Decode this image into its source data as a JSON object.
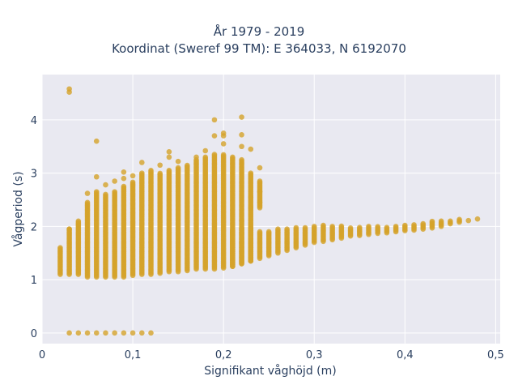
{
  "chart_data": {
    "type": "scatter",
    "title_lines": [
      "År 1979 - 2019",
      "Koordinat (Sweref 99 TM): E 364033, N 6192070"
    ],
    "xlabel": "Signifikant våghöjd (m)",
    "ylabel": "Vågperiod (s)",
    "xlim": [
      0,
      0.505
    ],
    "ylim": [
      -0.2,
      4.85
    ],
    "x_ticks": [
      0,
      0.1,
      0.2,
      0.3,
      0.4,
      0.5
    ],
    "x_tick_labels": [
      "0",
      "0,1",
      "0,2",
      "0,3",
      "0,4",
      "0,5"
    ],
    "y_ticks": [
      0,
      1,
      2,
      3,
      4
    ],
    "y_tick_labels": [
      "0",
      "1",
      "2",
      "3",
      "4"
    ],
    "grid": true,
    "marker_color": "#d4a22b",
    "plot_bg": "#e9e9f1",
    "bands": [
      {
        "x": 0.02,
        "ymin": 1.1,
        "ymax": 1.6
      },
      {
        "x": 0.03,
        "ymin": 1.1,
        "ymax": 1.95
      },
      {
        "x": 0.04,
        "ymin": 1.1,
        "ymax": 2.08
      },
      {
        "x": 0.05,
        "ymin": 1.05,
        "ymax": 2.45
      },
      {
        "x": 0.06,
        "ymin": 1.05,
        "ymax": 2.65
      },
      {
        "x": 0.07,
        "ymin": 1.05,
        "ymax": 2.6
      },
      {
        "x": 0.08,
        "ymin": 1.05,
        "ymax": 2.65
      },
      {
        "x": 0.09,
        "ymin": 1.05,
        "ymax": 2.75
      },
      {
        "x": 0.1,
        "ymin": 1.08,
        "ymax": 2.85
      },
      {
        "x": 0.11,
        "ymin": 1.1,
        "ymax": 3.0
      },
      {
        "x": 0.12,
        "ymin": 1.1,
        "ymax": 3.05
      },
      {
        "x": 0.13,
        "ymin": 1.12,
        "ymax": 3.0
      },
      {
        "x": 0.14,
        "ymin": 1.15,
        "ymax": 3.05
      },
      {
        "x": 0.15,
        "ymin": 1.15,
        "ymax": 3.1
      },
      {
        "x": 0.16,
        "ymin": 1.17,
        "ymax": 3.15
      },
      {
        "x": 0.17,
        "ymin": 1.2,
        "ymax": 3.25
      },
      {
        "x": 0.18,
        "ymin": 1.2,
        "ymax": 3.3
      },
      {
        "x": 0.19,
        "ymin": 1.2,
        "ymax": 3.35
      },
      {
        "x": 0.2,
        "ymin": 1.22,
        "ymax": 3.35
      },
      {
        "x": 0.21,
        "ymin": 1.25,
        "ymax": 3.3
      },
      {
        "x": 0.22,
        "ymin": 1.3,
        "ymax": 3.25
      },
      {
        "x": 0.23,
        "ymin": 1.35,
        "ymax": 3.0
      },
      {
        "x": 0.24,
        "ymin": 2.35,
        "ymax": 2.85
      }
    ],
    "lower_bands": [
      {
        "x": 0.21,
        "ymin": 1.28,
        "ymax": 1.95
      },
      {
        "x": 0.22,
        "ymin": 1.3,
        "ymax": 1.98
      },
      {
        "x": 0.23,
        "ymin": 1.35,
        "ymax": 1.98
      },
      {
        "x": 0.24,
        "ymin": 1.4,
        "ymax": 1.9
      },
      {
        "x": 0.25,
        "ymin": 1.45,
        "ymax": 1.92
      },
      {
        "x": 0.26,
        "ymin": 1.5,
        "ymax": 1.95
      },
      {
        "x": 0.27,
        "ymin": 1.55,
        "ymax": 1.97
      },
      {
        "x": 0.28,
        "ymin": 1.6,
        "ymax": 1.98
      },
      {
        "x": 0.29,
        "ymin": 1.65,
        "ymax": 1.98
      },
      {
        "x": 0.3,
        "ymin": 1.7,
        "ymax": 2.02
      },
      {
        "x": 0.31,
        "ymin": 1.72,
        "ymax": 2.02
      },
      {
        "x": 0.32,
        "ymin": 1.75,
        "ymax": 2.02
      },
      {
        "x": 0.33,
        "ymin": 1.78,
        "ymax": 2.02
      },
      {
        "x": 0.34,
        "ymin": 1.82,
        "ymax": 1.98
      },
      {
        "x": 0.35,
        "ymin": 1.83,
        "ymax": 1.98
      },
      {
        "x": 0.36,
        "ymin": 1.85,
        "ymax": 2.0
      },
      {
        "x": 0.37,
        "ymin": 1.87,
        "ymax": 2.0
      },
      {
        "x": 0.38,
        "ymin": 1.88,
        "ymax": 2.0
      },
      {
        "x": 0.39,
        "ymin": 1.9,
        "ymax": 2.02
      },
      {
        "x": 0.4,
        "ymin": 1.92,
        "ymax": 2.02
      },
      {
        "x": 0.41,
        "ymin": 1.93,
        "ymax": 2.05
      },
      {
        "x": 0.42,
        "ymin": 1.95,
        "ymax": 2.07
      },
      {
        "x": 0.43,
        "ymin": 1.97,
        "ymax": 2.1
      },
      {
        "x": 0.44,
        "ymin": 2.0,
        "ymax": 2.1
      },
      {
        "x": 0.45,
        "ymin": 2.05,
        "ymax": 2.12
      },
      {
        "x": 0.46,
        "ymin": 2.08,
        "ymax": 2.13
      }
    ],
    "points": [
      {
        "x": 0.03,
        "y": 4.58
      },
      {
        "x": 0.03,
        "y": 4.52
      },
      {
        "x": 0.06,
        "y": 3.6
      },
      {
        "x": 0.06,
        "y": 2.93
      },
      {
        "x": 0.11,
        "y": 3.2
      },
      {
        "x": 0.14,
        "y": 3.4
      },
      {
        "x": 0.14,
        "y": 3.3
      },
      {
        "x": 0.19,
        "y": 4.0
      },
      {
        "x": 0.19,
        "y": 3.7
      },
      {
        "x": 0.2,
        "y": 3.75
      },
      {
        "x": 0.2,
        "y": 3.7
      },
      {
        "x": 0.2,
        "y": 3.55
      },
      {
        "x": 0.22,
        "y": 4.05
      },
      {
        "x": 0.22,
        "y": 3.72
      },
      {
        "x": 0.22,
        "y": 3.5
      },
      {
        "x": 0.23,
        "y": 3.45
      },
      {
        "x": 0.24,
        "y": 3.1
      },
      {
        "x": 0.22,
        "y": 2.1
      },
      {
        "x": 0.23,
        "y": 2.35
      },
      {
        "x": 0.24,
        "y": 2.65
      },
      {
        "x": 0.21,
        "y": 1.25
      },
      {
        "x": 0.03,
        "y": 1.95
      },
      {
        "x": 0.07,
        "y": 2.78
      },
      {
        "x": 0.09,
        "y": 3.02
      },
      {
        "x": 0.09,
        "y": 2.9
      },
      {
        "x": 0.04,
        "y": 2.1
      },
      {
        "x": 0.05,
        "y": 2.62
      },
      {
        "x": 0.08,
        "y": 2.85
      },
      {
        "x": 0.1,
        "y": 2.95
      },
      {
        "x": 0.13,
        "y": 3.15
      },
      {
        "x": 0.15,
        "y": 3.22
      },
      {
        "x": 0.17,
        "y": 3.3
      },
      {
        "x": 0.18,
        "y": 3.42
      },
      {
        "x": 0.47,
        "y": 2.11
      },
      {
        "x": 0.48,
        "y": 2.14
      },
      {
        "x": 0.23,
        "y": 2.55
      },
      {
        "x": 0.24,
        "y": 2.45
      }
    ],
    "zero_points_x": [
      0.03,
      0.04,
      0.05,
      0.06,
      0.07,
      0.08,
      0.09,
      0.1,
      0.11,
      0.12
    ]
  }
}
